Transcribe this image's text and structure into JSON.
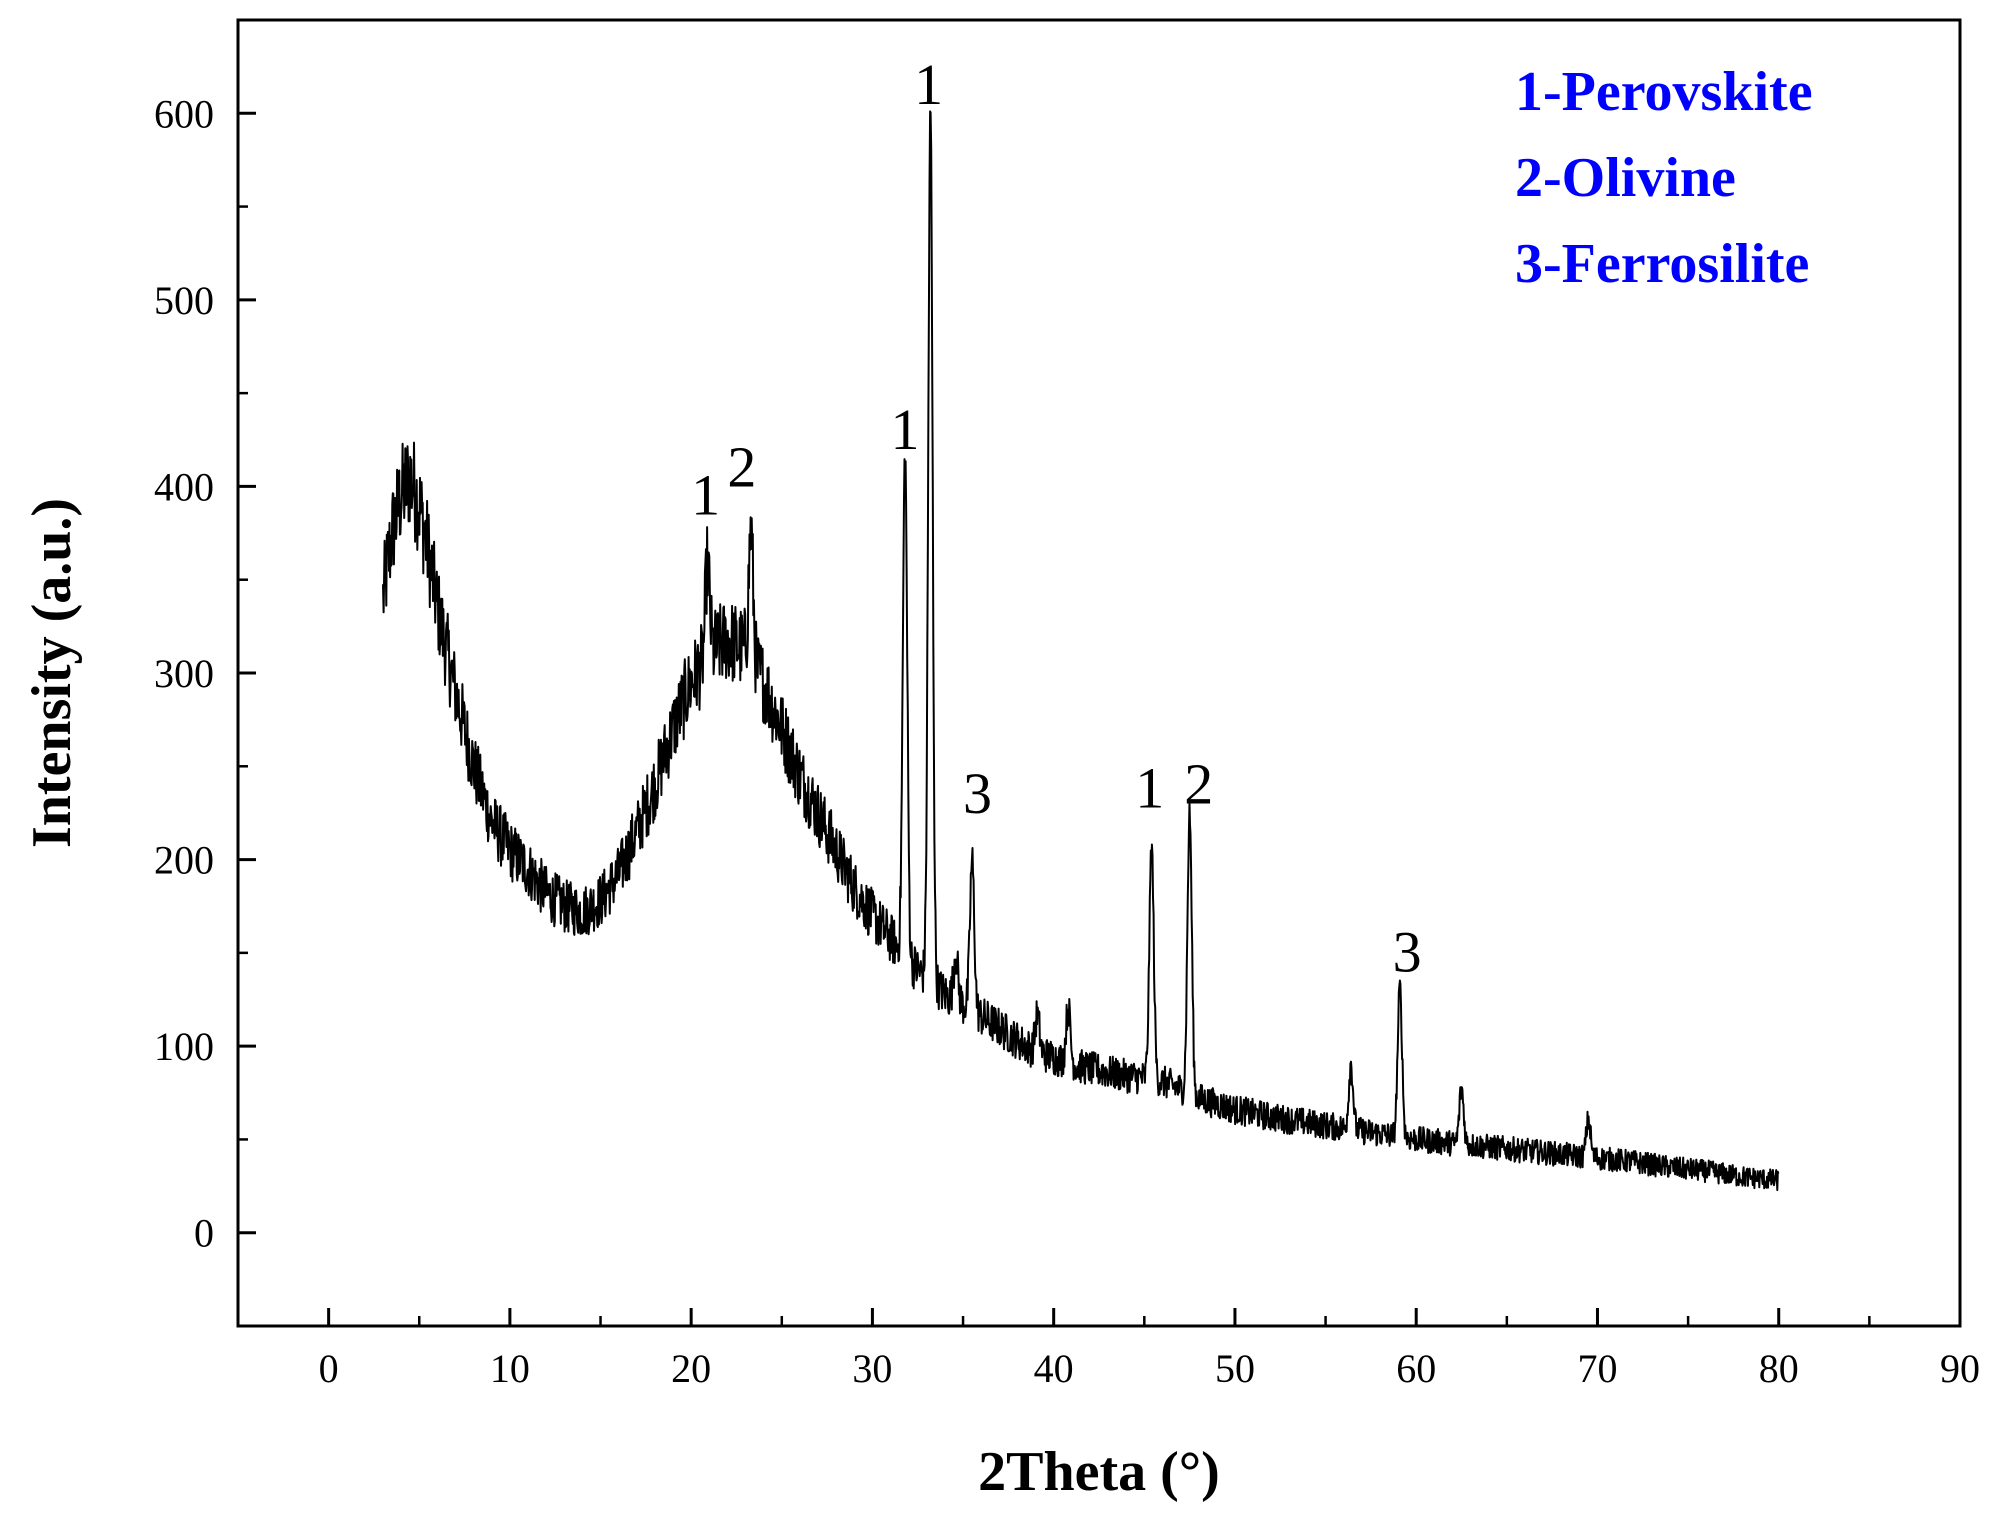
{
  "chart_data": {
    "type": "line",
    "title": "",
    "xlabel": "2Theta (°)",
    "ylabel": "Intensity (a.u.)",
    "xlim": [
      -5,
      90
    ],
    "ylim": [
      -50,
      650
    ],
    "x_ticks": [
      0,
      10,
      20,
      30,
      40,
      50,
      60,
      70,
      80,
      90
    ],
    "y_ticks": [
      0,
      100,
      200,
      300,
      400,
      500,
      600
    ],
    "grid": false,
    "line_color": "#000000",
    "legend_color": "#0000ff",
    "legend_position": "top-right",
    "legend": [
      {
        "text": "1-Perovskite"
      },
      {
        "text": "2-Olivine"
      },
      {
        "text": "3-Ferrosilite"
      }
    ],
    "series": [
      {
        "x": [
          3,
          3.5,
          4,
          4.5,
          5,
          5.5,
          6,
          7,
          8,
          9,
          10,
          11,
          12,
          13,
          14,
          15,
          16,
          17,
          18,
          19,
          20,
          21,
          22,
          23,
          24,
          25,
          26,
          27,
          28,
          29,
          30,
          31,
          32,
          33,
          34,
          35,
          36,
          37,
          38,
          39,
          40,
          41,
          42,
          43,
          44,
          45,
          46,
          47,
          48,
          49,
          50,
          52,
          54,
          56,
          58,
          60,
          62,
          64,
          66,
          68,
          70,
          72,
          74,
          76,
          78,
          80
        ],
        "y": [
          340,
          375,
          395,
          405,
          390,
          365,
          335,
          290,
          250,
          220,
          205,
          195,
          182,
          175,
          172,
          178,
          192,
          215,
          240,
          270,
          295,
          310,
          318,
          312,
          295,
          270,
          245,
          225,
          205,
          185,
          170,
          158,
          146,
          136,
          128,
          122,
          116,
          110,
          103,
          97,
          94,
          90,
          88,
          86,
          84,
          83,
          81,
          77,
          72,
          69,
          66,
          62,
          59,
          56,
          53,
          50,
          48,
          46,
          44,
          42,
          40,
          38,
          35,
          33,
          30,
          28
        ]
      }
    ],
    "peaks": [
      {
        "x": 20.9,
        "height": 50
      },
      {
        "x": 23.3,
        "height": 70
      },
      {
        "x": 31.8,
        "height": 270
      },
      {
        "x": 33.2,
        "height": 465
      },
      {
        "x": 35.5,
        "height": 80
      },
      {
        "x": 45.4,
        "height": 125
      },
      {
        "x": 47.5,
        "height": 150
      },
      {
        "x": 59.1,
        "height": 80
      },
      {
        "x": 56.4,
        "height": 35
      },
      {
        "x": 34.6,
        "height": 25
      },
      {
        "x": 40.8,
        "height": 30
      },
      {
        "x": 39.1,
        "height": 20
      },
      {
        "x": 62.5,
        "height": 30
      },
      {
        "x": 69.5,
        "height": 20
      }
    ],
    "annotations": [
      {
        "text": "1",
        "x": 20.8,
        "y": 385
      },
      {
        "text": "2",
        "x": 22.8,
        "y": 400
      },
      {
        "text": "1",
        "x": 31.8,
        "y": 420
      },
      {
        "text": "1",
        "x": 33.1,
        "y": 605
      },
      {
        "text": "3",
        "x": 35.8,
        "y": 225
      },
      {
        "text": "1",
        "x": 45.3,
        "y": 228
      },
      {
        "text": "2",
        "x": 48.0,
        "y": 230
      },
      {
        "text": "3",
        "x": 59.5,
        "y": 140
      }
    ]
  }
}
